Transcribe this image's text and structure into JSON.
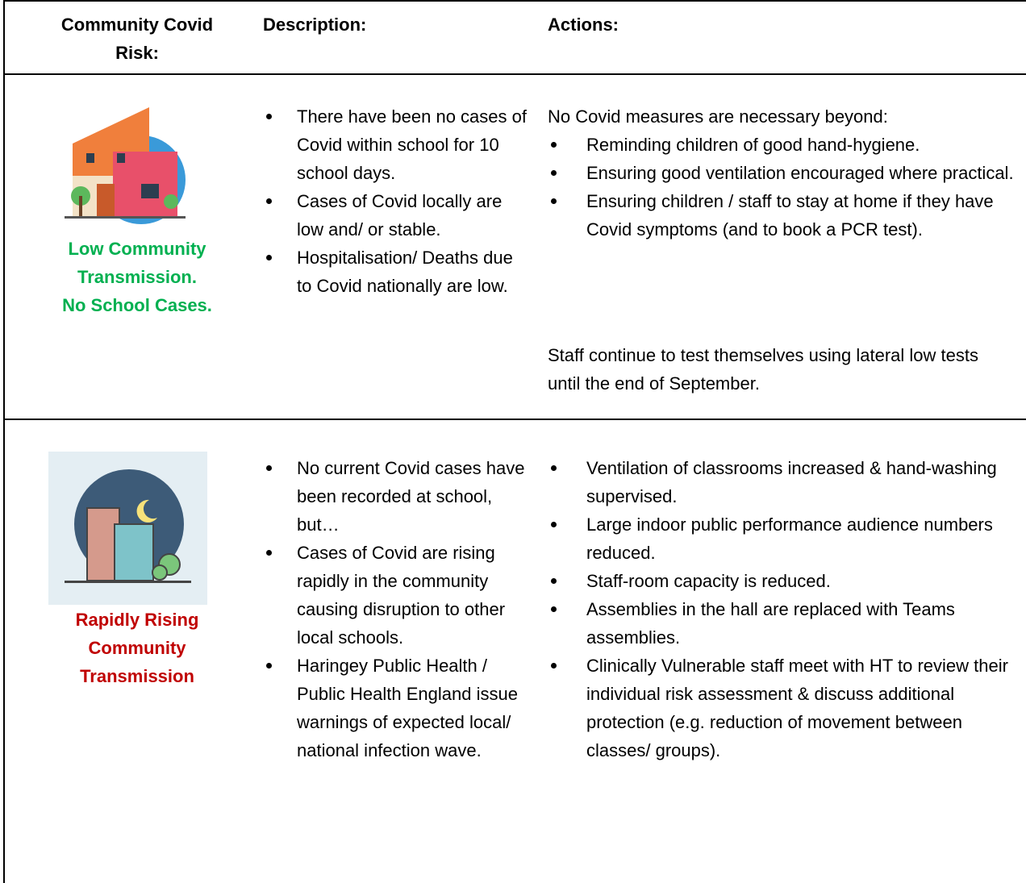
{
  "table": {
    "headers": [
      "Community Covid Risk:",
      "Description:",
      "Actions:"
    ],
    "rows": [
      {
        "risk": [
          "Low Community",
          "Transmission.",
          "No School Cases."
        ],
        "description": [
          "There have been no cases of Covid within school for 10 school days.",
          "Cases of Covid locally are low and/ or stable.",
          "Hospitalisation/ Deaths due to Covid nationally are low."
        ],
        "actions_intro": "No Covid measures are necessary beyond:",
        "actions": [
          "Reminding children of good hand-hygiene.",
          "Ensuring good ventilation encouraged where practical.",
          "Ensuring children / staff to stay at home if they have Covid symptoms (and to book a PCR test)."
        ],
        "actions_note": "Staff continue to test themselves using lateral low tests until the end of September."
      },
      {
        "risk": [
          "Rapidly Rising",
          "Community",
          "Transmission"
        ],
        "description": [
          "No current Covid cases have been recorded at school, but…",
          "Cases of Covid are rising rapidly in the community causing disruption to other local schools.",
          "Haringey Public Health / Public Health England issue warnings of expected local/ national infection wave."
        ],
        "actions": [
          "Ventilation of classrooms increased & hand-washing supervised.",
          "Large indoor public performance audience numbers reduced.",
          "Staff-room capacity is reduced.",
          "Assemblies in the hall are replaced with Teams assemblies.",
          "Clinically Vulnerable staff meet with HT to review their individual risk assessment & discuss additional protection (e.g. reduction of movement between classes/ groups)."
        ]
      }
    ]
  }
}
